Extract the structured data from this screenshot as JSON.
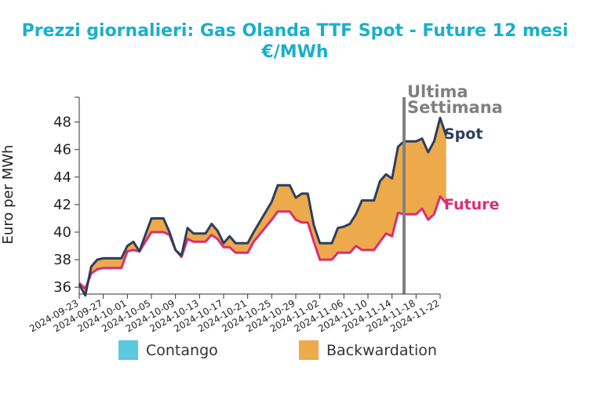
{
  "chart_data": {
    "type": "area",
    "title_line1": "Prezzi giornalieri: Gas Olanda TTF Spot - Future 12 mesi",
    "title_line2": "€/MWh",
    "ylabel": "Euro per MWh",
    "ylim": [
      35.5,
      49.8
    ],
    "yticks": [
      36,
      38,
      40,
      42,
      44,
      46,
      48
    ],
    "xticks": [
      "2024-09-23",
      "2024-09-27",
      "2024-10-01",
      "2024-10-05",
      "2024-10-09",
      "2024-10-13",
      "2024-10-17",
      "2024-10-21",
      "2024-10-25",
      "2024-10-29",
      "2024-11-02",
      "2024-11-06",
      "2024-11-10",
      "2024-11-14",
      "2024-11-18",
      "2024-11-22"
    ],
    "x_start": "2024-09-23",
    "x_end": "2024-11-22",
    "annotation": {
      "date": "2024-11-16",
      "line1": "Ultima",
      "line2": "Settimana"
    },
    "series": [
      {
        "name": "Spot",
        "points": [
          [
            "2024-09-23",
            36.2
          ],
          [
            "2024-09-24",
            35.4
          ],
          [
            "2024-09-25",
            37.5
          ],
          [
            "2024-09-26",
            38.0
          ],
          [
            "2024-09-27",
            38.1
          ],
          [
            "2024-09-29",
            38.1
          ],
          [
            "2024-09-30",
            38.1
          ],
          [
            "2024-10-01",
            39.0
          ],
          [
            "2024-10-02",
            39.3
          ],
          [
            "2024-10-03",
            38.6
          ],
          [
            "2024-10-04",
            39.8
          ],
          [
            "2024-10-05",
            41.0
          ],
          [
            "2024-10-07",
            41.0
          ],
          [
            "2024-10-08",
            40.0
          ],
          [
            "2024-10-09",
            38.7
          ],
          [
            "2024-10-10",
            38.3
          ],
          [
            "2024-10-11",
            40.3
          ],
          [
            "2024-10-12",
            39.9
          ],
          [
            "2024-10-14",
            39.9
          ],
          [
            "2024-10-15",
            40.6
          ],
          [
            "2024-10-16",
            40.1
          ],
          [
            "2024-10-17",
            39.2
          ],
          [
            "2024-10-18",
            39.7
          ],
          [
            "2024-10-19",
            39.2
          ],
          [
            "2024-10-21",
            39.2
          ],
          [
            "2024-10-22",
            40.0
          ],
          [
            "2024-10-25",
            42.2
          ],
          [
            "2024-10-26",
            43.4
          ],
          [
            "2024-10-28",
            43.4
          ],
          [
            "2024-10-29",
            42.5
          ],
          [
            "2024-10-30",
            42.8
          ],
          [
            "2024-10-31",
            42.8
          ],
          [
            "2024-11-01",
            40.5
          ],
          [
            "2024-11-02",
            39.2
          ],
          [
            "2024-11-04",
            39.2
          ],
          [
            "2024-11-05",
            40.3
          ],
          [
            "2024-11-06",
            40.4
          ],
          [
            "2024-11-07",
            40.6
          ],
          [
            "2024-11-08",
            41.3
          ],
          [
            "2024-11-09",
            42.3
          ],
          [
            "2024-11-11",
            42.3
          ],
          [
            "2024-11-12",
            43.7
          ],
          [
            "2024-11-13",
            44.2
          ],
          [
            "2024-11-14",
            43.9
          ],
          [
            "2024-11-15",
            46.2
          ],
          [
            "2024-11-16",
            46.6
          ],
          [
            "2024-11-18",
            46.6
          ],
          [
            "2024-11-19",
            46.8
          ],
          [
            "2024-11-20",
            45.8
          ],
          [
            "2024-11-21",
            46.6
          ],
          [
            "2024-11-22",
            48.3
          ],
          [
            "2024-11-23",
            47.0
          ]
        ]
      },
      {
        "name": "Future",
        "points": [
          [
            "2024-09-23",
            36.3
          ],
          [
            "2024-09-24",
            35.9
          ],
          [
            "2024-09-25",
            37.0
          ],
          [
            "2024-09-26",
            37.3
          ],
          [
            "2024-09-27",
            37.4
          ],
          [
            "2024-09-29",
            37.4
          ],
          [
            "2024-09-30",
            37.4
          ],
          [
            "2024-10-01",
            38.6
          ],
          [
            "2024-10-02",
            38.7
          ],
          [
            "2024-10-03",
            38.6
          ],
          [
            "2024-10-04",
            39.3
          ],
          [
            "2024-10-05",
            40.0
          ],
          [
            "2024-10-07",
            40.0
          ],
          [
            "2024-10-08",
            39.8
          ],
          [
            "2024-10-09",
            38.7
          ],
          [
            "2024-10-10",
            38.2
          ],
          [
            "2024-10-11",
            39.5
          ],
          [
            "2024-10-12",
            39.3
          ],
          [
            "2024-10-14",
            39.3
          ],
          [
            "2024-10-15",
            39.8
          ],
          [
            "2024-10-16",
            39.5
          ],
          [
            "2024-10-17",
            38.9
          ],
          [
            "2024-10-18",
            38.9
          ],
          [
            "2024-10-19",
            38.5
          ],
          [
            "2024-10-21",
            38.5
          ],
          [
            "2024-10-22",
            39.3
          ],
          [
            "2024-10-25",
            40.9
          ],
          [
            "2024-10-26",
            41.5
          ],
          [
            "2024-10-28",
            41.5
          ],
          [
            "2024-10-29",
            40.9
          ],
          [
            "2024-10-30",
            40.7
          ],
          [
            "2024-10-31",
            40.7
          ],
          [
            "2024-11-01",
            39.3
          ],
          [
            "2024-11-02",
            38.0
          ],
          [
            "2024-11-04",
            38.0
          ],
          [
            "2024-11-05",
            38.5
          ],
          [
            "2024-11-07",
            38.5
          ],
          [
            "2024-11-08",
            39.0
          ],
          [
            "2024-11-09",
            38.7
          ],
          [
            "2024-11-11",
            38.7
          ],
          [
            "2024-11-12",
            39.3
          ],
          [
            "2024-11-13",
            39.9
          ],
          [
            "2024-11-14",
            39.7
          ],
          [
            "2024-11-15",
            41.4
          ],
          [
            "2024-11-16",
            41.3
          ],
          [
            "2024-11-18",
            41.3
          ],
          [
            "2024-11-19",
            41.7
          ],
          [
            "2024-11-20",
            40.9
          ],
          [
            "2024-11-21",
            41.3
          ],
          [
            "2024-11-22",
            42.6
          ],
          [
            "2024-11-23",
            42.1
          ]
        ]
      }
    ],
    "legend": [
      {
        "label": "Contango",
        "color": "#5BC8DE"
      },
      {
        "label": "Backwardation",
        "color": "#EDAA4B"
      }
    ],
    "legend_position": "bottom"
  },
  "colors": {
    "title": "#1AAFCB",
    "spot": "#2D3E5E",
    "future": "#DC2D73",
    "backwardation": "#EDAA4B",
    "contango": "#5BC8DE",
    "annotation": "#808080"
  }
}
